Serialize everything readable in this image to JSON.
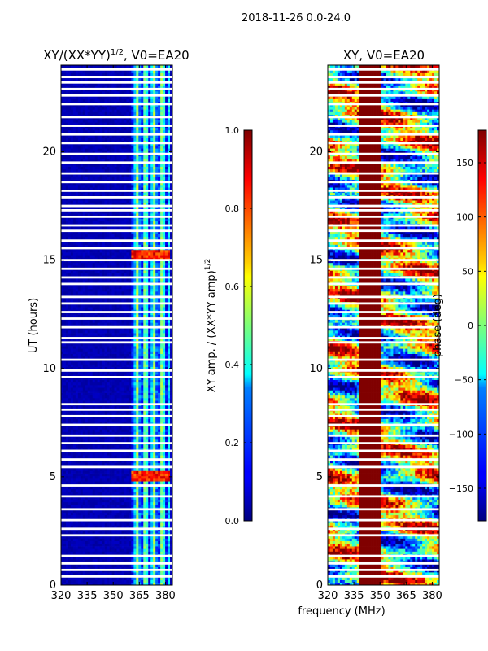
{
  "suptitle": "2018-11-26 0.0-24.0",
  "chart_data": [
    {
      "type": "heatmap",
      "title": "XY/(XX*YY)",
      "title_exp": "1/2",
      "title_suffix": ", V0=EA20",
      "xlabel": "",
      "ylabel": "UT (hours)",
      "xlim": [
        320,
        384
      ],
      "ylim": [
        0,
        24
      ],
      "xticks": [
        "320",
        "335",
        "350",
        "365",
        "380"
      ],
      "xtick_values": [
        320,
        335,
        350,
        365,
        380
      ],
      "yticks": [
        "0",
        "5",
        "10",
        "15",
        "20"
      ],
      "ytick_values": [
        0,
        5,
        10,
        15,
        20
      ],
      "colorbar": {
        "label": "XY amp. / (XX*YY amp)",
        "label_exp": "1/2",
        "range": [
          0.0,
          1.0
        ],
        "ticks": [
          "0.0",
          "0.2",
          "0.4",
          "0.6",
          "0.8",
          "1.0"
        ],
        "tick_values": [
          0.0,
          0.2,
          0.4,
          0.6,
          0.8,
          1.0
        ]
      },
      "active_band_mhz": [
        361,
        382
      ],
      "high_amp_hours": [
        5.0,
        15.2
      ],
      "colormap": "jet"
    },
    {
      "type": "heatmap",
      "title": "XY, V0=EA20",
      "xlabel": "frequency (MHz)",
      "ylabel": "",
      "xlim": [
        320,
        384
      ],
      "ylim": [
        0,
        24
      ],
      "xticks": [
        "320",
        "335",
        "350",
        "365",
        "380"
      ],
      "xtick_values": [
        320,
        335,
        350,
        365,
        380
      ],
      "yticks": [
        "0",
        "5",
        "10",
        "15",
        "20"
      ],
      "ytick_values": [
        0,
        5,
        10,
        15,
        20
      ],
      "colorbar": {
        "label": "phase (deg)",
        "range": [
          -180,
          180
        ],
        "ticks": [
          "−150",
          "−100",
          "−50",
          "0",
          "50",
          "100",
          "150"
        ],
        "tick_values": [
          -150,
          -100,
          -50,
          0,
          50,
          100,
          150
        ]
      },
      "colormap": "jet"
    }
  ],
  "flagged_hours": [
    0.4,
    0.7,
    1.0,
    1.35,
    2.3,
    2.6,
    3.0,
    3.5,
    4.1,
    4.6,
    5.45,
    5.8,
    6.2,
    6.55,
    6.9,
    7.4,
    7.8,
    8.1,
    8.35,
    9.6,
    9.9,
    10.4,
    11.2,
    11.4,
    11.9,
    12.3,
    12.6,
    13.0,
    13.3,
    13.9,
    14.2,
    14.6,
    15.0,
    15.55,
    15.9,
    16.35,
    16.6,
    17.0,
    17.3,
    17.5,
    17.9,
    18.2,
    18.6,
    19.0,
    19.5,
    19.9,
    20.4,
    20.8,
    21.2,
    21.6,
    22.2,
    22.6,
    22.9,
    23.2,
    23.45,
    23.8
  ]
}
